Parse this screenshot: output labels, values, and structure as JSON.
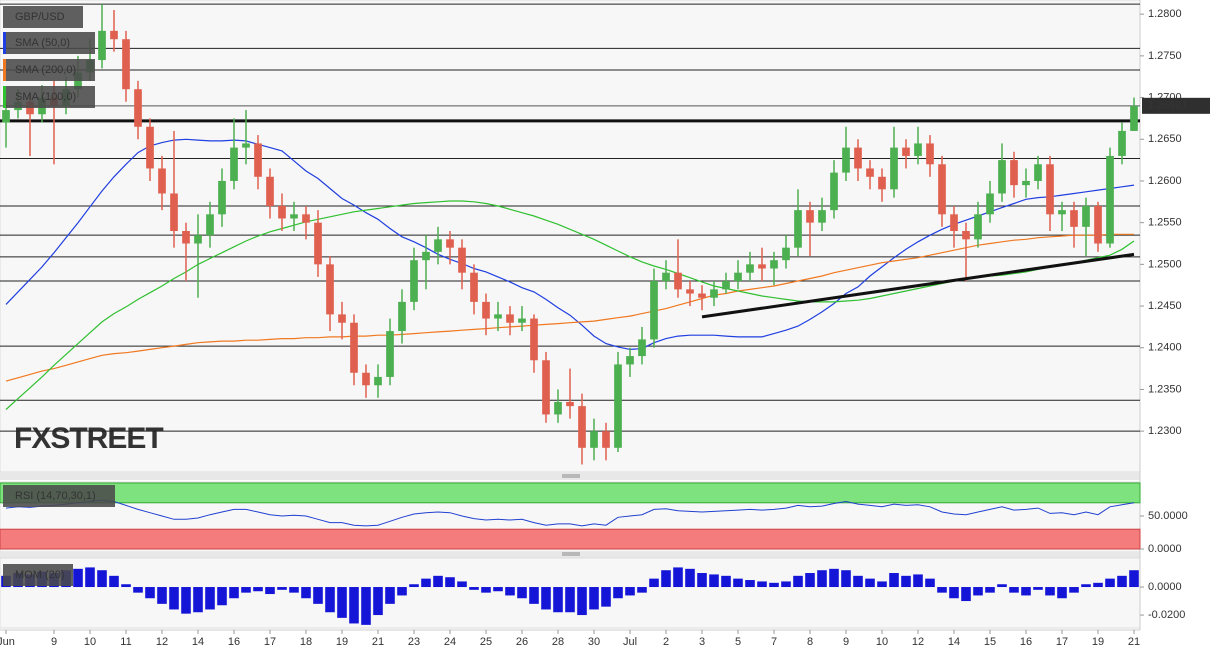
{
  "chart_data": [
    {
      "type": "candlestick",
      "title": "GBP/USD",
      "watermark": "FXSTREET",
      "categories": [
        "Jun",
        null,
        null,
        null,
        "9",
        null,
        null,
        "10",
        null,
        null,
        "11",
        null,
        null,
        "12",
        null,
        null,
        "14",
        null,
        null,
        "16",
        null,
        null,
        "17",
        null,
        null,
        "18",
        null,
        null,
        "19",
        null,
        null,
        "21",
        null,
        null,
        "23",
        null,
        null,
        "24",
        null,
        null,
        "25",
        null,
        null,
        "26",
        null,
        null,
        "28",
        null,
        null,
        "30",
        null,
        null,
        "Jul",
        null,
        null,
        "2",
        null,
        null,
        "3",
        null,
        null,
        "5",
        null,
        null,
        "7",
        null,
        null,
        "8",
        null,
        null,
        "9",
        null,
        null,
        "10",
        null,
        null,
        "12",
        null,
        null,
        "14",
        null,
        null,
        "15",
        null,
        null,
        "16",
        null,
        null,
        "17",
        null,
        null,
        "19",
        null,
        null,
        "21"
      ],
      "open": [
        1.267,
        1.2685,
        1.2695,
        1.268,
        1.27,
        1.269,
        1.271,
        1.273,
        1.2745,
        1.278,
        1.277,
        1.271,
        1.2665,
        1.2615,
        1.2585,
        1.254,
        1.2525,
        1.2535,
        1.256,
        1.26,
        1.264,
        1.2645,
        1.2605,
        1.257,
        1.2555,
        1.256,
        1.255,
        1.25,
        1.244,
        1.243,
        1.237,
        1.2355,
        1.2365,
        1.242,
        1.2455,
        1.2505,
        1.2515,
        1.253,
        1.252,
        1.249,
        1.2455,
        1.2435,
        1.244,
        1.243,
        1.2435,
        1.2385,
        1.232,
        1.2335,
        1.233,
        1.228,
        1.23,
        1.228,
        1.238,
        1.239,
        1.241,
        1.248,
        1.249,
        1.247,
        1.2465,
        1.246,
        1.247,
        1.248,
        1.249,
        1.25,
        1.2495,
        1.2505,
        1.252,
        1.2565,
        1.255,
        1.2565,
        1.261,
        1.264,
        1.2615,
        1.2605,
        1.259,
        1.264,
        1.263,
        1.2645,
        1.262,
        1.256,
        1.254,
        1.253,
        1.256,
        1.2585,
        1.2625,
        1.2595,
        1.26,
        1.262,
        1.256,
        1.2565,
        1.2545,
        1.257,
        1.2525,
        1.263,
        1.266
      ],
      "high": [
        1.2695,
        1.271,
        1.2705,
        1.2715,
        1.272,
        1.2725,
        1.275,
        1.277,
        1.2812,
        1.2805,
        1.278,
        1.272,
        1.2675,
        1.263,
        1.266,
        1.255,
        1.256,
        1.2575,
        1.2615,
        1.2675,
        1.2685,
        1.2655,
        1.2615,
        1.2585,
        1.2575,
        1.257,
        1.2565,
        1.251,
        1.2455,
        1.244,
        1.238,
        1.238,
        1.2435,
        1.247,
        1.252,
        1.2535,
        1.2545,
        1.254,
        1.253,
        1.25,
        1.2465,
        1.2455,
        1.245,
        1.245,
        1.244,
        1.2395,
        1.235,
        1.2375,
        1.2345,
        1.2315,
        1.231,
        1.2395,
        1.24,
        1.2425,
        1.2495,
        1.2505,
        1.253,
        1.248,
        1.2475,
        1.248,
        1.249,
        1.2505,
        1.2515,
        1.252,
        1.2515,
        1.2535,
        1.259,
        1.2575,
        1.258,
        1.2625,
        1.2665,
        1.265,
        1.2625,
        1.2615,
        1.2665,
        1.265,
        1.2665,
        1.2655,
        1.263,
        1.257,
        1.255,
        1.2575,
        1.26,
        1.2645,
        1.2635,
        1.2615,
        1.263,
        1.263,
        1.2575,
        1.2575,
        1.258,
        1.2575,
        1.264,
        1.267,
        1.27
      ],
      "low": [
        1.264,
        1.2675,
        1.263,
        1.267,
        1.262,
        1.268,
        1.27,
        1.272,
        1.2735,
        1.2755,
        1.2695,
        1.265,
        1.26,
        1.2565,
        1.252,
        1.248,
        1.246,
        1.252,
        1.2545,
        1.259,
        1.262,
        1.259,
        1.2555,
        1.254,
        1.254,
        1.253,
        1.2485,
        1.242,
        1.241,
        1.2355,
        1.234,
        1.234,
        1.2355,
        1.2405,
        1.2445,
        1.247,
        1.25,
        1.25,
        1.247,
        1.244,
        1.2415,
        1.242,
        1.2415,
        1.242,
        1.237,
        1.231,
        1.231,
        1.2315,
        1.226,
        1.2265,
        1.2265,
        1.2275,
        1.2365,
        1.238,
        1.24,
        1.247,
        1.246,
        1.245,
        1.2445,
        1.245,
        1.2465,
        1.247,
        1.248,
        1.248,
        1.2475,
        1.2495,
        1.251,
        1.251,
        1.254,
        1.2555,
        1.26,
        1.26,
        1.259,
        1.2575,
        1.258,
        1.2615,
        1.262,
        1.2605,
        1.2545,
        1.252,
        1.248,
        1.252,
        1.255,
        1.2575,
        1.258,
        1.258,
        1.259,
        1.254,
        1.254,
        1.252,
        1.251,
        1.2515,
        1.252,
        1.262,
        1.266
      ],
      "close": [
        1.2685,
        1.2695,
        1.268,
        1.27,
        1.269,
        1.271,
        1.273,
        1.2745,
        1.278,
        1.277,
        1.271,
        1.2665,
        1.2615,
        1.2585,
        1.254,
        1.2525,
        1.2535,
        1.256,
        1.26,
        1.264,
        1.2645,
        1.2605,
        1.257,
        1.2555,
        1.256,
        1.255,
        1.25,
        1.244,
        1.243,
        1.237,
        1.2355,
        1.2365,
        1.242,
        1.2455,
        1.2505,
        1.2515,
        1.253,
        1.252,
        1.249,
        1.2455,
        1.2435,
        1.244,
        1.243,
        1.2435,
        1.2385,
        1.232,
        1.2335,
        1.233,
        1.228,
        1.23,
        1.228,
        1.238,
        1.239,
        1.241,
        1.248,
        1.249,
        1.247,
        1.2465,
        1.246,
        1.247,
        1.248,
        1.249,
        1.25,
        1.2495,
        1.2505,
        1.252,
        1.2565,
        1.255,
        1.2565,
        1.261,
        1.264,
        1.2615,
        1.2605,
        1.259,
        1.264,
        1.263,
        1.2645,
        1.262,
        1.256,
        1.254,
        1.253,
        1.256,
        1.2585,
        1.2625,
        1.2595,
        1.26,
        1.262,
        1.256,
        1.2565,
        1.2545,
        1.257,
        1.2525,
        1.263,
        1.266,
        1.269
      ],
      "colors": {
        "up": "#4caf50",
        "down": "#e0604f"
      },
      "series": [
        {
          "name": "SMA (50,0)",
          "color": "#1f3fe0",
          "values": [
            1.2452,
            1.2467,
            1.2482,
            1.2497,
            1.2514,
            1.2532,
            1.255,
            1.2569,
            1.2588,
            1.2605,
            1.262,
            1.2634,
            1.2642,
            1.2646,
            1.2649,
            1.265,
            1.2649,
            1.2648,
            1.2648,
            1.2649,
            1.2648,
            1.2644,
            1.264,
            1.2636,
            1.2624,
            1.2612,
            1.2603,
            1.2591,
            1.2579,
            1.2571,
            1.2562,
            1.2554,
            1.2543,
            1.2533,
            1.2527,
            1.252,
            1.2512,
            1.2506,
            1.2501,
            1.2495,
            1.2491,
            1.2485,
            1.2479,
            1.2472,
            1.2467,
            1.2458,
            1.2448,
            1.2439,
            1.2427,
            1.2414,
            1.2405,
            1.2401,
            1.2398,
            1.2399,
            1.2406,
            1.2411,
            1.2414,
            1.2415,
            1.2415,
            1.2415,
            1.2414,
            1.2413,
            1.2413,
            1.2413,
            1.2417,
            1.2421,
            1.2426,
            1.2434,
            1.2443,
            1.2453,
            1.2465,
            1.2473,
            1.2486,
            1.2497,
            1.2508,
            1.2518,
            1.2527,
            1.2535,
            1.2542,
            1.2548,
            1.2553,
            1.2558,
            1.2563,
            1.2568,
            1.2573,
            1.2578,
            1.258,
            1.2581,
            1.2583,
            1.2585,
            1.2587,
            1.2589,
            1.2591,
            1.2593,
            1.2595
          ]
        },
        {
          "name": "SMA (200,0)",
          "color": "#f07820",
          "values": [
            1.236,
            1.2364,
            1.2368,
            1.2372,
            1.2375,
            1.2379,
            1.2383,
            1.2387,
            1.2391,
            1.2393,
            1.2394,
            1.2396,
            1.2398,
            1.24,
            1.2402,
            1.2404,
            1.2406,
            1.2407,
            1.2408,
            1.2408,
            1.2409,
            1.2409,
            1.241,
            1.2411,
            1.2411,
            1.2412,
            1.2412,
            1.2413,
            1.2413,
            1.2414,
            1.2414,
            1.2415,
            1.2415,
            1.2416,
            1.2417,
            1.2418,
            1.2419,
            1.242,
            1.2421,
            1.2422,
            1.2423,
            1.2424,
            1.2425,
            1.2426,
            1.2427,
            1.2428,
            1.2429,
            1.243,
            1.2431,
            1.2432,
            1.2434,
            1.2436,
            1.2438,
            1.2441,
            1.2444,
            1.2447,
            1.2451,
            1.2455,
            1.2459,
            1.2463,
            1.2465,
            1.2468,
            1.247,
            1.2472,
            1.2474,
            1.2477,
            1.248,
            1.2483,
            1.2486,
            1.249,
            1.2493,
            1.2496,
            1.2499,
            1.2502,
            1.2504,
            1.2506,
            1.2508,
            1.2511,
            1.2514,
            1.2517,
            1.252,
            1.2523,
            1.2525,
            1.2527,
            1.2529,
            1.253,
            1.2532,
            1.2533,
            1.2534,
            1.2535,
            1.2535,
            1.2535,
            1.2536,
            1.2536,
            1.2536
          ]
        },
        {
          "name": "SMA (100,0)",
          "color": "#30c030",
          "values": [
            1.2326,
            1.2339,
            1.2352,
            1.2365,
            1.2379,
            1.2392,
            1.2405,
            1.2418,
            1.2431,
            1.2441,
            1.2449,
            1.2458,
            1.2466,
            1.2474,
            1.2483,
            1.2491,
            1.25,
            1.2507,
            1.2514,
            1.2521,
            1.2528,
            1.2534,
            1.2539,
            1.2543,
            1.2547,
            1.2551,
            1.2554,
            1.2557,
            1.256,
            1.2563,
            1.2565,
            1.2567,
            1.2569,
            1.2571,
            1.2573,
            1.2574,
            1.2575,
            1.2576,
            1.2576,
            1.2575,
            1.2573,
            1.257,
            1.2566,
            1.2562,
            1.2558,
            1.2553,
            1.2548,
            1.2542,
            1.2536,
            1.253,
            1.2523,
            1.2516,
            1.2509,
            1.2503,
            1.2498,
            1.2494,
            1.2489,
            1.2484,
            1.2479,
            1.2474,
            1.2471,
            1.2468,
            1.2465,
            1.2462,
            1.246,
            1.2458,
            1.2456,
            1.2455,
            1.2455,
            1.2455,
            1.2456,
            1.2457,
            1.2459,
            1.2462,
            1.2465,
            1.2468,
            1.2471,
            1.2474,
            1.2477,
            1.248,
            1.2482,
            1.2484,
            1.2486,
            1.2487,
            1.2489,
            1.2491,
            1.2494,
            1.2497,
            1.25,
            1.2502,
            1.2505,
            1.2508,
            1.2511,
            1.2518,
            1.2528
          ]
        }
      ],
      "levels": [
        1.2812,
        1.2759,
        1.2733,
        1.2627,
        1.257,
        1.2535,
        1.2509,
        1.248,
        1.2402,
        1.2337,
        1.23
      ],
      "key_level": 1.2672,
      "trendline": [
        [
          58,
          1.2437
        ],
        [
          94,
          1.2512
        ]
      ],
      "last_price": {
        "value": 1.26901,
        "label": "1.26901"
      },
      "ylim": [
        1.2251,
        1.2817
      ],
      "yticks": [
        {
          "value": 1.28,
          "label": "1.2800"
        },
        {
          "value": 1.275,
          "label": "1.2750"
        },
        {
          "value": 1.27,
          "label": "1.2700"
        },
        {
          "value": 1.265,
          "label": "1.2650"
        },
        {
          "value": 1.26,
          "label": "1.2600"
        },
        {
          "value": 1.255,
          "label": "1.2550"
        },
        {
          "value": 1.25,
          "label": "1.2500"
        },
        {
          "value": 1.245,
          "label": "1.2450"
        },
        {
          "value": 1.24,
          "label": "1.2400"
        },
        {
          "value": 1.235,
          "label": "1.2350"
        },
        {
          "value": 1.23,
          "label": "1.2300"
        }
      ]
    },
    {
      "type": "line",
      "title": "RSI (14,70,30,1)",
      "color": "#2040d0",
      "overbought": 70,
      "oversold": 30,
      "zone_colors": {
        "overbought": "#7ee37e",
        "oversold": "#f47c7c"
      },
      "values": [
        62,
        64,
        63,
        65,
        66,
        68,
        70,
        72,
        74,
        72,
        66,
        60,
        55,
        50,
        45,
        45,
        47,
        52,
        56,
        60,
        60,
        56,
        52,
        50,
        51,
        50,
        45,
        40,
        40,
        36,
        35,
        36,
        42,
        48,
        53,
        55,
        56,
        55,
        50,
        46,
        44,
        45,
        44,
        45,
        40,
        36,
        38,
        38,
        35,
        38,
        36,
        48,
        50,
        52,
        60,
        61,
        58,
        57,
        56,
        57,
        58,
        59,
        60,
        59,
        60,
        62,
        66,
        64,
        65,
        69,
        72,
        68,
        66,
        64,
        68,
        66,
        67,
        64,
        56,
        53,
        52,
        56,
        60,
        64,
        59,
        60,
        62,
        54,
        55,
        52,
        56,
        52,
        64,
        67,
        70
      ],
      "ylim": [
        0,
        101.5
      ],
      "yticks": [
        {
          "value": 50,
          "label": "50.0000"
        },
        {
          "value": 0,
          "label": "0.0000"
        }
      ]
    },
    {
      "type": "bar",
      "title": "MOM (20)",
      "color": "#1515d8",
      "values": [
        0.008,
        0.01,
        0.009,
        0.011,
        0.01,
        0.012,
        0.013,
        0.014,
        0.012,
        0.008,
        0.002,
        -0.004,
        -0.008,
        -0.012,
        -0.016,
        -0.019,
        -0.018,
        -0.016,
        -0.013,
        -0.008,
        -0.004,
        -0.003,
        -0.005,
        -0.002,
        -0.004,
        -0.008,
        -0.012,
        -0.018,
        -0.022,
        -0.026,
        -0.027,
        -0.02,
        -0.012,
        -0.006,
        0.002,
        0.006,
        0.008,
        0.007,
        0.004,
        -0.002,
        -0.004,
        -0.003,
        -0.006,
        -0.008,
        -0.012,
        -0.016,
        -0.018,
        -0.018,
        -0.02,
        -0.016,
        -0.014,
        -0.008,
        -0.006,
        -0.004,
        0.006,
        0.012,
        0.014,
        0.013,
        0.01,
        0.009,
        0.008,
        0.006,
        0.005,
        0.004,
        0.003,
        0.004,
        0.008,
        0.01,
        0.012,
        0.013,
        0.012,
        0.008,
        0.006,
        0.004,
        0.01,
        0.008,
        0.009,
        0.006,
        -0.004,
        -0.008,
        -0.01,
        -0.006,
        -0.004,
        0.002,
        -0.004,
        -0.006,
        -0.002,
        -0.006,
        -0.008,
        -0.004,
        0.002,
        0.003,
        0.006,
        0.008,
        0.012
      ],
      "ylim": [
        -0.0271,
        0.0193
      ],
      "yticks": [
        {
          "value": 0,
          "label": "0.0000"
        },
        {
          "value": -0.02,
          "label": "-0.0200"
        }
      ]
    }
  ]
}
